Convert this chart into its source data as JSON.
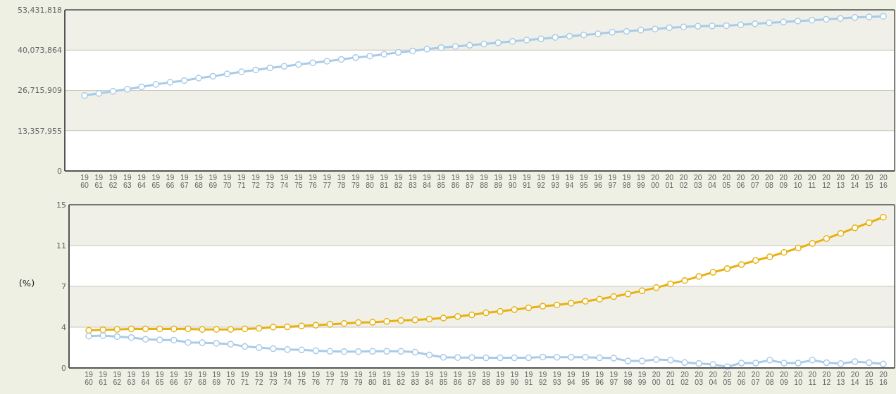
{
  "chart_data": [
    {
      "type": "line",
      "categories": [
        "1960",
        "1961",
        "1962",
        "1963",
        "1964",
        "1965",
        "1966",
        "1967",
        "1968",
        "1969",
        "1970",
        "1971",
        "1972",
        "1973",
        "1974",
        "1975",
        "1976",
        "1977",
        "1978",
        "1979",
        "1980",
        "1981",
        "1982",
        "1983",
        "1984",
        "1985",
        "1986",
        "1987",
        "1988",
        "1989",
        "1990",
        "1991",
        "1992",
        "1993",
        "1994",
        "1995",
        "1996",
        "1997",
        "1998",
        "1999",
        "2000",
        "2001",
        "2002",
        "2003",
        "2004",
        "2005",
        "2006",
        "2007",
        "2008",
        "2009",
        "2010",
        "2011",
        "2012",
        "2013",
        "2014",
        "2015",
        "2016"
      ],
      "series": [
        {
          "color": "#a8cbe8",
          "values": [
            25000000,
            25700000,
            26400000,
            27100000,
            27900000,
            28700000,
            29400000,
            30000000,
            30800000,
            31400000,
            32200000,
            32900000,
            33500000,
            34200000,
            34700000,
            35300000,
            35900000,
            36400000,
            37000000,
            37600000,
            38100000,
            38700000,
            39300000,
            39800000,
            40400000,
            40900000,
            41300000,
            41700000,
            42100000,
            42500000,
            43000000,
            43400000,
            43800000,
            44300000,
            44700000,
            45100000,
            45500000,
            46000000,
            46300000,
            46700000,
            47100000,
            47500000,
            47800000,
            48000000,
            48100000,
            48200000,
            48500000,
            48800000,
            49100000,
            49400000,
            49700000,
            50000000,
            50300000,
            50600000,
            50900000,
            51100000,
            51300000
          ]
        }
      ],
      "ylim": [
        0,
        53431818
      ],
      "yticks": [
        {
          "value": 0,
          "label": "0"
        },
        {
          "value": 13357954.5,
          "label": "13,357,955"
        },
        {
          "value": 26715909,
          "label": "26,715,909"
        },
        {
          "value": 40073863.5,
          "label": "40,073,864"
        },
        {
          "value": 53431818,
          "label": "53,431,818"
        }
      ],
      "grid": "y",
      "marker": "circle",
      "line_style": "solid"
    },
    {
      "type": "line",
      "ylabel": "(%)",
      "categories": [
        "1960",
        "1961",
        "1962",
        "1963",
        "1964",
        "1965",
        "1966",
        "1967",
        "1968",
        "1969",
        "1970",
        "1971",
        "1972",
        "1973",
        "1974",
        "1975",
        "1976",
        "1977",
        "1978",
        "1979",
        "1980",
        "1981",
        "1982",
        "1983",
        "1984",
        "1985",
        "1986",
        "1987",
        "1988",
        "1989",
        "1990",
        "1991",
        "1992",
        "1993",
        "1994",
        "1995",
        "1996",
        "1997",
        "1998",
        "1999",
        "2000",
        "2001",
        "2002",
        "2003",
        "2004",
        "2005",
        "2006",
        "2007",
        "2008",
        "2009",
        "2010",
        "2011",
        "2012",
        "2013",
        "2014",
        "2015",
        "2016"
      ],
      "series": [
        {
          "color": "#e8b010",
          "values": [
            3.46,
            3.51,
            3.54,
            3.59,
            3.59,
            3.59,
            3.59,
            3.59,
            3.54,
            3.54,
            3.54,
            3.59,
            3.64,
            3.75,
            3.78,
            3.86,
            3.93,
            4.01,
            4.09,
            4.17,
            4.2,
            4.28,
            4.36,
            4.41,
            4.49,
            4.59,
            4.73,
            4.88,
            5.07,
            5.2,
            5.36,
            5.52,
            5.68,
            5.79,
            5.95,
            6.13,
            6.32,
            6.56,
            6.8,
            7.09,
            7.38,
            7.73,
            8.04,
            8.41,
            8.79,
            9.13,
            9.5,
            9.88,
            10.22,
            10.62,
            11.02,
            11.44,
            11.89,
            12.37,
            12.88,
            13.35,
            13.86
          ]
        },
        {
          "color": "#a8cbe8",
          "values": [
            2.93,
            2.98,
            2.88,
            2.8,
            2.64,
            2.59,
            2.56,
            2.35,
            2.32,
            2.27,
            2.19,
            1.98,
            1.87,
            1.77,
            1.69,
            1.66,
            1.58,
            1.53,
            1.51,
            1.51,
            1.53,
            1.53,
            1.53,
            1.45,
            1.19,
            0.98,
            0.96,
            0.96,
            0.93,
            0.93,
            0.93,
            0.93,
            1.01,
            0.98,
            0.98,
            0.98,
            0.93,
            0.9,
            0.64,
            0.64,
            0.77,
            0.72,
            0.5,
            0.42,
            0.32,
            0.11,
            0.45,
            0.45,
            0.72,
            0.45,
            0.45,
            0.72,
            0.48,
            0.4,
            0.58,
            0.48,
            0.37
          ]
        }
      ],
      "ylim": [
        0,
        15
      ],
      "yticks": [
        {
          "value": 0,
          "label": "0"
        },
        {
          "value": 3.75,
          "label": "4"
        },
        {
          "value": 7.5,
          "label": "7"
        },
        {
          "value": 11.25,
          "label": "11"
        },
        {
          "value": 15,
          "label": "15"
        }
      ],
      "grid": "y",
      "marker": "circle",
      "line_style": "solid"
    }
  ]
}
